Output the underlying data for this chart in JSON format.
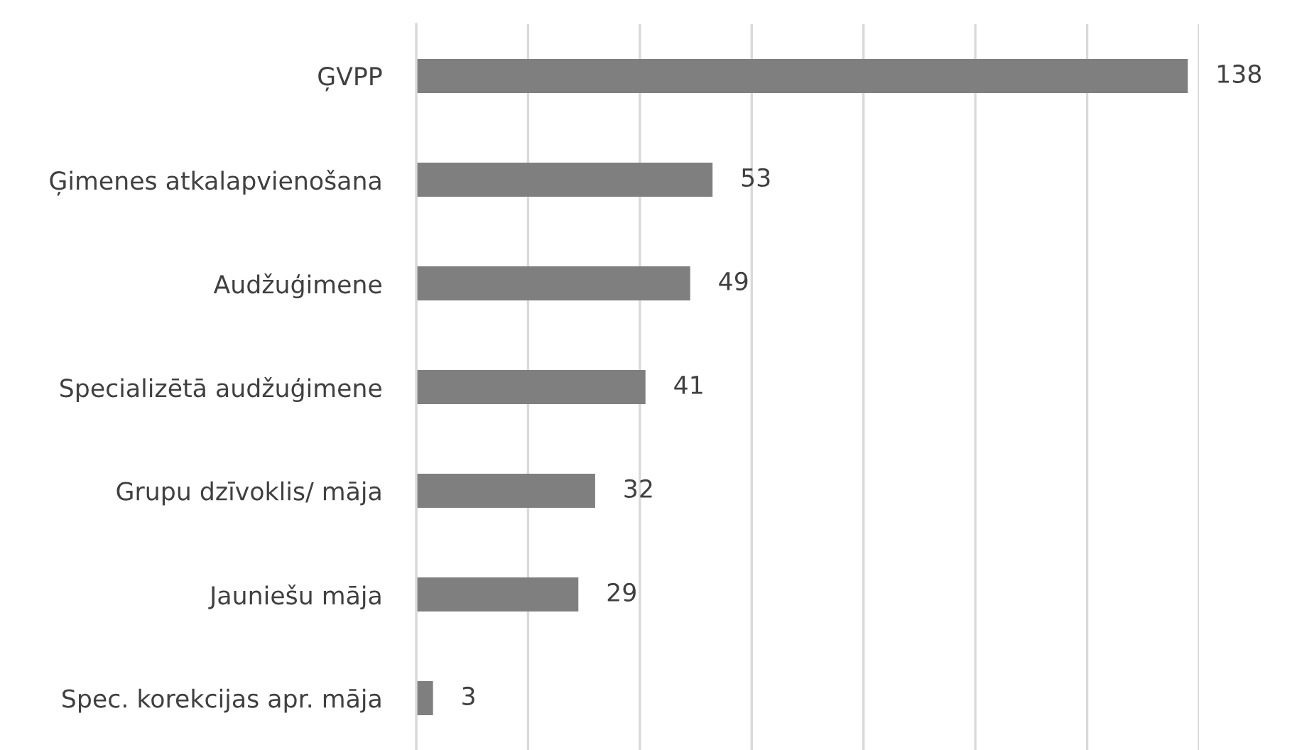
{
  "chart_data": {
    "type": "bar",
    "orientation": "horizontal",
    "categories": [
      "ĢVPP",
      "Ģimenes atkalapvienošana",
      "Audžuģimene",
      "Specializētā audžuģimene",
      "Grupu dzīvoklis/ māja",
      "Jauniešu māja",
      "Spec. korekcijas apr. māja"
    ],
    "values": [
      138,
      53,
      49,
      41,
      32,
      29,
      3
    ],
    "color": "#7f7f7f",
    "xlim": [
      0,
      140
    ],
    "xticks": [
      {
        "value": 0,
        "label": null
      },
      {
        "value": 20,
        "label": null
      },
      {
        "value": 40,
        "label": null
      },
      {
        "value": 60,
        "label": null
      },
      {
        "value": 80,
        "label": null
      },
      {
        "value": 100,
        "label": null
      },
      {
        "value": 120,
        "label": null
      },
      {
        "value": 140,
        "label": null
      }
    ],
    "tick_labels": "y",
    "grid": "x",
    "data_labels": true
  }
}
